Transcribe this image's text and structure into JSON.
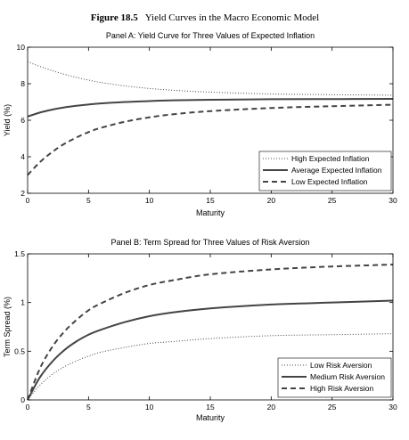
{
  "figure": {
    "number": "Figure 18.5",
    "caption": "Yield Curves in the Macro Economic Model"
  },
  "chart_data": [
    {
      "type": "line",
      "title": "Panel A: Yield Curve for Three Values of Expected Inflation",
      "xlabel": "Maturity",
      "ylabel": "Yield (%)",
      "xlim": [
        0,
        30
      ],
      "ylim": [
        2,
        10
      ],
      "xticks": [
        "0",
        "5",
        "10",
        "15",
        "20",
        "25",
        "30"
      ],
      "yticks": [
        "2",
        "4",
        "6",
        "8",
        "10"
      ],
      "grid": false,
      "legend_position": "bottom-right",
      "x": [
        0,
        1,
        2,
        3,
        4,
        5,
        6,
        8,
        10,
        12,
        15,
        20,
        25,
        30
      ],
      "series": [
        {
          "name": "High Expected Inflation",
          "style": "dotted",
          "color": "#444444",
          "values": [
            9.2,
            8.95,
            8.72,
            8.52,
            8.35,
            8.2,
            8.07,
            7.88,
            7.74,
            7.64,
            7.54,
            7.44,
            7.4,
            7.37
          ]
        },
        {
          "name": "Average Expected Inflation",
          "style": "solid",
          "color": "#444444",
          "values": [
            6.2,
            6.42,
            6.58,
            6.7,
            6.79,
            6.86,
            6.92,
            7.0,
            7.05,
            7.09,
            7.12,
            7.15,
            7.16,
            7.17
          ]
        },
        {
          "name": "Low Expected Inflation",
          "style": "dashed",
          "color": "#444444",
          "values": [
            3.0,
            3.7,
            4.25,
            4.7,
            5.05,
            5.35,
            5.58,
            5.92,
            6.16,
            6.33,
            6.5,
            6.67,
            6.77,
            6.85
          ]
        }
      ]
    },
    {
      "type": "line",
      "title": "Panel B: Term Spread for Three Values of Risk Aversion",
      "xlabel": "Maturity",
      "ylabel": "Term Spread (%)",
      "xlim": [
        0,
        30
      ],
      "ylim": [
        0,
        1.5
      ],
      "xticks": [
        "0",
        "5",
        "10",
        "15",
        "20",
        "25",
        "30"
      ],
      "yticks": [
        "0",
        "0.5",
        "1",
        "1.5"
      ],
      "grid": false,
      "legend_position": "bottom-right",
      "x": [
        0,
        1,
        2,
        3,
        4,
        5,
        6,
        8,
        10,
        12,
        15,
        20,
        25,
        30
      ],
      "series": [
        {
          "name": "Low Risk Aversion",
          "style": "dotted",
          "color": "#444444",
          "values": [
            0,
            0.15,
            0.26,
            0.34,
            0.4,
            0.45,
            0.49,
            0.54,
            0.58,
            0.6,
            0.63,
            0.66,
            0.67,
            0.68
          ]
        },
        {
          "name": "Medium Risk Aversion",
          "style": "solid",
          "color": "#444444",
          "values": [
            0,
            0.23,
            0.39,
            0.51,
            0.6,
            0.67,
            0.72,
            0.8,
            0.86,
            0.9,
            0.94,
            0.98,
            1.0,
            1.02
          ]
        },
        {
          "name": "High Risk Aversion",
          "style": "dashed",
          "color": "#444444",
          "values": [
            0,
            0.32,
            0.54,
            0.7,
            0.82,
            0.92,
            0.99,
            1.1,
            1.18,
            1.23,
            1.29,
            1.34,
            1.37,
            1.39
          ]
        }
      ]
    }
  ]
}
